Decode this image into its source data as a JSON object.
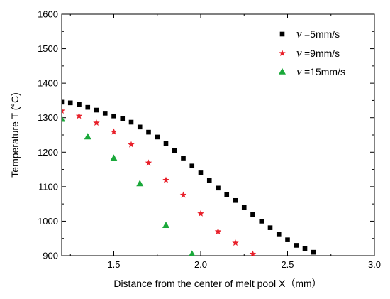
{
  "chart_data": {
    "type": "scatter",
    "xlabel": "Distance from the center of melt pool X（mm）",
    "ylabel": "Temperature T (°C)",
    "xlim": [
      1.2,
      3.0
    ],
    "ylim": [
      900,
      1600
    ],
    "xticks": [
      "1.5",
      "2.0",
      "2.5",
      "3.0"
    ],
    "yticks": [
      "900",
      "1000",
      "1100",
      "1200",
      "1300",
      "1400",
      "1500",
      "1600"
    ],
    "grid": false,
    "legend_position": "top-right",
    "series": [
      {
        "name": "=5mm/s",
        "legend_symbol": "v",
        "marker": "square",
        "color": "#000000",
        "x": [
          1.2,
          1.25,
          1.3,
          1.35,
          1.4,
          1.45,
          1.5,
          1.55,
          1.6,
          1.65,
          1.7,
          1.75,
          1.8,
          1.85,
          1.9,
          1.95,
          2.0,
          2.05,
          2.1,
          2.15,
          2.2,
          2.25,
          2.3,
          2.35,
          2.4,
          2.45,
          2.5,
          2.55,
          2.6,
          2.65
        ],
        "y": [
          1345,
          1343,
          1338,
          1330,
          1322,
          1313,
          1305,
          1297,
          1287,
          1273,
          1258,
          1244,
          1225,
          1205,
          1183,
          1160,
          1140,
          1118,
          1096,
          1077,
          1060,
          1040,
          1020,
          1000,
          981,
          963,
          946,
          930,
          920,
          910
        ]
      },
      {
        "name": "=9mm/s",
        "legend_symbol": "v",
        "marker": "star",
        "color": "#e8202a",
        "x": [
          1.2,
          1.3,
          1.4,
          1.5,
          1.6,
          1.7,
          1.8,
          1.9,
          2.0,
          2.1,
          2.2,
          2.3
        ],
        "y": [
          1320,
          1305,
          1285,
          1259,
          1222,
          1169,
          1119,
          1076,
          1022,
          970,
          937,
          905
        ]
      },
      {
        "name": "=15mm/s",
        "legend_symbol": "v",
        "marker": "triangle",
        "color": "#1aa83a",
        "x": [
          1.2,
          1.35,
          1.5,
          1.65,
          1.8,
          1.95
        ],
        "y": [
          1296,
          1245,
          1183,
          1109,
          988,
          905
        ]
      }
    ]
  }
}
